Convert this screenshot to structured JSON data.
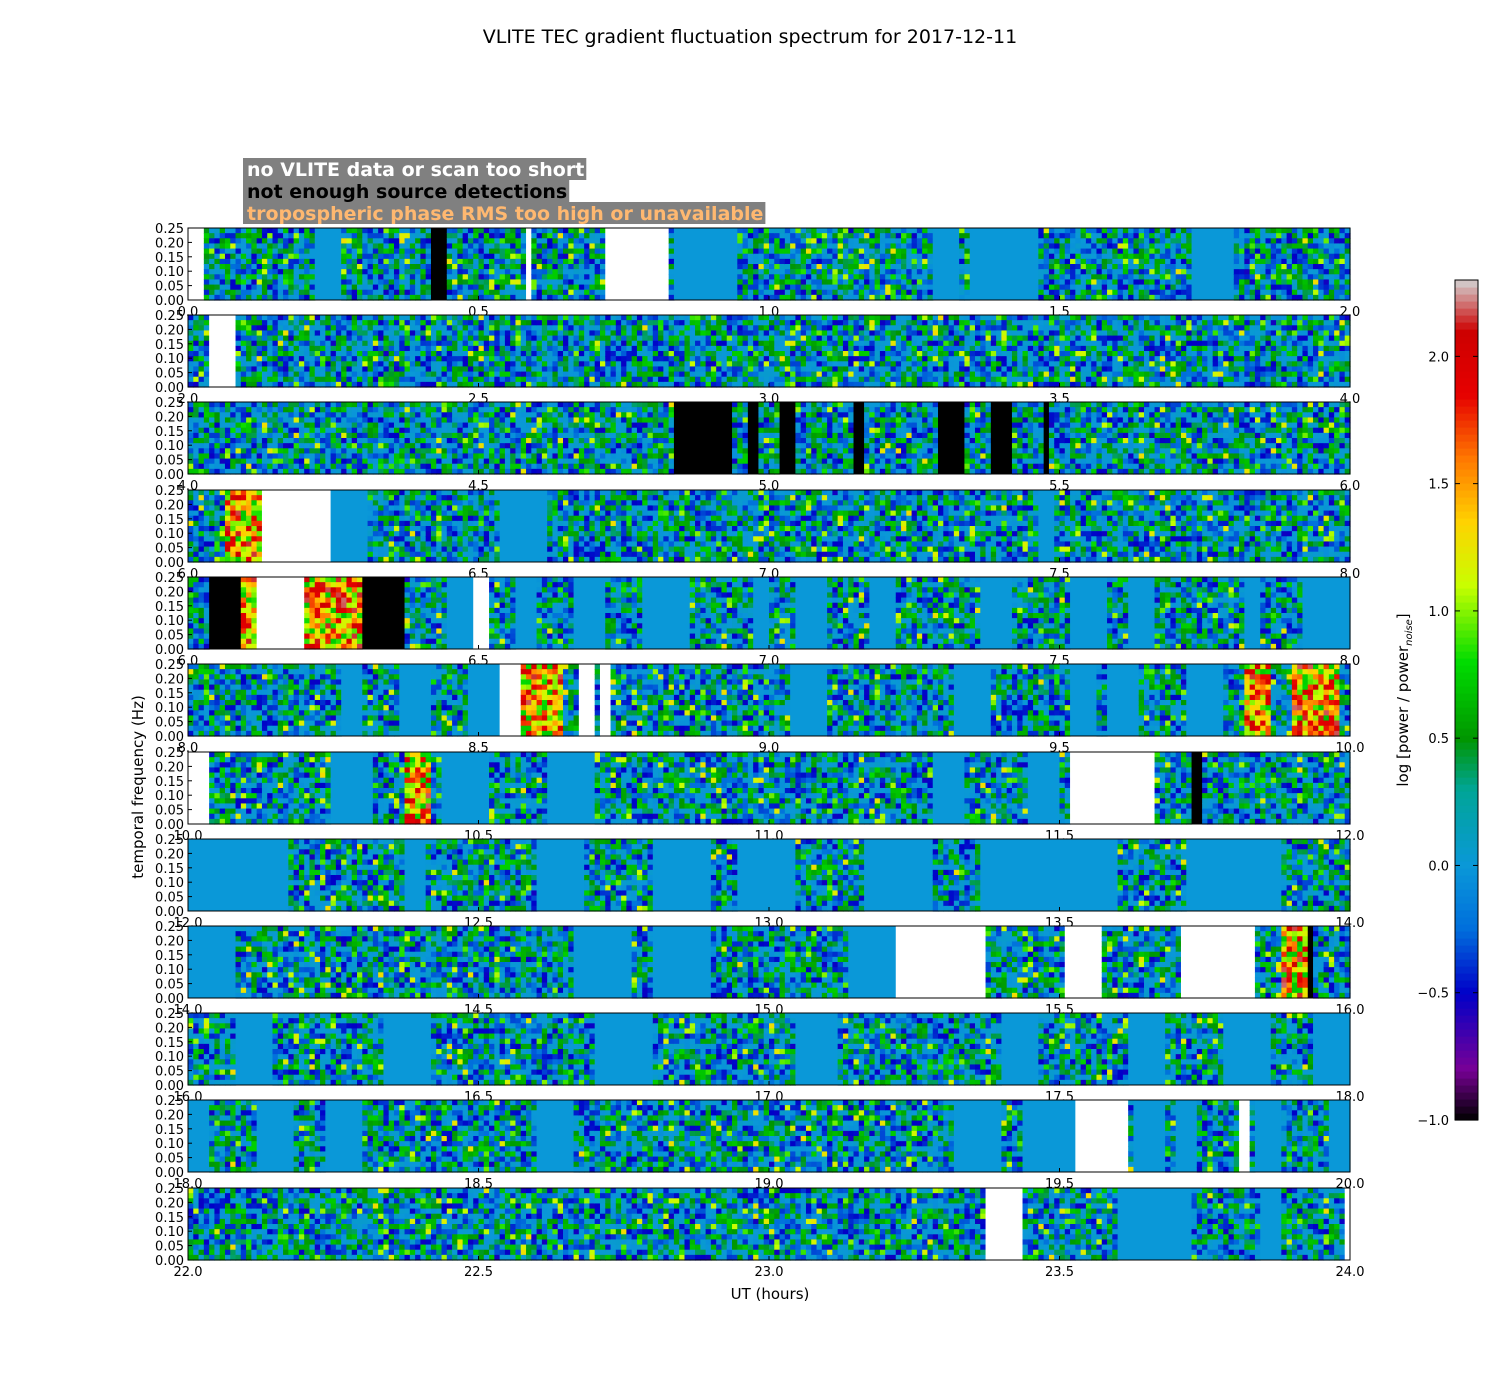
{
  "chart_data": {
    "type": "heatmap",
    "title": "VLITE TEC gradient fluctuation spectrum for 2017-12-11",
    "xlabel": "UT (hours)",
    "ylabel": "temporal frequency (Hz)",
    "ylim": [
      0,
      0.25
    ],
    "y_ticks": [
      "0.00",
      "0.05",
      "0.10",
      "0.15",
      "0.20",
      "0.25"
    ],
    "colorbar": {
      "label_main": "log [power / power",
      "label_sub": "noise",
      "label_end": "]",
      "range": [
        -1.0,
        2.3
      ],
      "ticks": [
        "−1.0",
        "−0.5",
        "0.0",
        "0.5",
        "1.0",
        "1.5",
        "2.0"
      ],
      "tick_values": [
        -1.0,
        -0.5,
        0.0,
        0.5,
        1.0,
        1.5,
        2.0
      ]
    },
    "legend": [
      {
        "text": "no VLITE data or scan too short",
        "text_color": "#ffffff",
        "meaning": "white"
      },
      {
        "text": "not enough source detections",
        "text_color": "#000000",
        "meaning": "black"
      },
      {
        "text": "tropospheric phase RMS too high or unavailable",
        "text_color": "#ffb870",
        "meaning": "red-yellow"
      }
    ],
    "legend_background": "#808080",
    "colors": {
      "no_data": "#ffffff",
      "few_detections": "#000000",
      "baseline": "#0a98d8"
    },
    "rows": [
      {
        "x_ticks": [
          "0.0",
          "0.5",
          "1.0",
          "1.5",
          "2.0"
        ],
        "range": [
          0,
          2
        ],
        "white": [
          [
            0,
            0.03
          ],
          [
            0.58,
            0.59
          ],
          [
            0.72,
            0.83
          ]
        ],
        "black": [
          [
            0.42,
            0.45
          ]
        ],
        "hot": [],
        "flat": [
          [
            0.22,
            0.26
          ],
          [
            0.75,
            0.82
          ],
          [
            0.84,
            0.95
          ],
          [
            1.28,
            1.33
          ],
          [
            1.35,
            1.46
          ],
          [
            1.73,
            1.8
          ]
        ]
      },
      {
        "x_ticks": [
          "2.0",
          "2.5",
          "3.0",
          "3.5",
          "4.0"
        ],
        "range": [
          2,
          4
        ],
        "white": [
          [
            2.04,
            2.08
          ]
        ],
        "black": [],
        "hot": [],
        "flat": []
      },
      {
        "x_ticks": [
          "4.0",
          "4.5",
          "5.0",
          "5.5",
          "6.0"
        ],
        "range": [
          4,
          6
        ],
        "white": [],
        "black": [
          [
            4.84,
            4.94
          ],
          [
            4.96,
            4.98
          ],
          [
            5.02,
            5.05
          ],
          [
            5.15,
            5.16
          ],
          [
            5.29,
            5.34
          ],
          [
            5.38,
            5.42
          ],
          [
            5.47,
            5.48
          ]
        ],
        "hot": [],
        "flat": []
      },
      {
        "x_ticks": [
          "6.0",
          "6.5",
          "7.0",
          "7.5",
          "8.0"
        ],
        "range": [
          6,
          8
        ],
        "white": [
          [
            6.13,
            6.25
          ]
        ],
        "black": [],
        "hot": [
          [
            6.06,
            6.13
          ]
        ],
        "flat": [
          [
            6.25,
            6.31
          ],
          [
            6.54,
            6.62
          ],
          [
            7.46,
            7.49
          ]
        ]
      },
      {
        "x_ticks": [
          "6.0",
          "6.5",
          "7.0",
          "7.5",
          "8.0"
        ],
        "range": [
          6,
          8
        ],
        "white": [
          [
            6.12,
            6.2
          ],
          [
            6.49,
            6.52
          ]
        ],
        "black": [
          [
            6.04,
            6.09
          ],
          [
            6.3,
            6.37
          ]
        ],
        "hot": [
          [
            6.09,
            6.12
          ],
          [
            6.2,
            6.3
          ]
        ],
        "flat": [
          [
            6.45,
            6.49
          ],
          [
            6.56,
            6.6
          ],
          [
            6.66,
            6.72
          ],
          [
            6.78,
            6.86
          ],
          [
            6.97,
            7.0
          ],
          [
            7.05,
            7.1
          ],
          [
            7.17,
            7.22
          ],
          [
            7.36,
            7.42
          ],
          [
            7.52,
            7.58
          ],
          [
            7.62,
            7.66
          ],
          [
            7.82,
            7.85
          ],
          [
            7.92,
            8.0
          ]
        ]
      },
      {
        "x_ticks": [
          "8.0",
          "8.5",
          "9.0",
          "9.5",
          "10.0"
        ],
        "range": [
          8,
          10
        ],
        "white": [
          [
            8.54,
            8.57
          ],
          [
            8.67,
            8.7
          ],
          [
            8.71,
            8.73
          ]
        ],
        "black": [],
        "hot": [
          [
            8.57,
            8.65
          ],
          [
            9.82,
            9.86
          ],
          [
            9.9,
            9.98
          ]
        ],
        "flat": [
          [
            8.26,
            8.3
          ],
          [
            8.36,
            8.42
          ],
          [
            8.48,
            8.54
          ],
          [
            9.04,
            9.1
          ],
          [
            9.32,
            9.38
          ],
          [
            9.52,
            9.56
          ],
          [
            9.58,
            9.64
          ],
          [
            9.72,
            9.78
          ]
        ]
      },
      {
        "x_ticks": [
          "10.0",
          "10.5",
          "11.0",
          "11.5",
          "12.0"
        ],
        "range": [
          10,
          12
        ],
        "white": [
          [
            10.0,
            10.04
          ],
          [
            11.52,
            11.66
          ]
        ],
        "black": [
          [
            11.73,
            11.75
          ]
        ],
        "hot": [
          [
            10.37,
            10.42
          ]
        ],
        "flat": [
          [
            10.25,
            10.32
          ],
          [
            10.44,
            10.52
          ],
          [
            10.62,
            10.7
          ],
          [
            11.28,
            11.34
          ],
          [
            11.45,
            11.5
          ]
        ]
      },
      {
        "x_ticks": [
          "12.0",
          "12.5",
          "13.0",
          "13.5",
          "14.0"
        ],
        "range": [
          12,
          14
        ],
        "white": [],
        "black": [],
        "hot": [],
        "flat": [
          [
            12.0,
            12.17
          ],
          [
            12.37,
            12.41
          ],
          [
            12.6,
            12.68
          ],
          [
            12.8,
            12.9
          ],
          [
            12.95,
            13.05
          ],
          [
            13.16,
            13.28
          ],
          [
            13.36,
            13.6
          ],
          [
            13.72,
            13.88
          ]
        ]
      },
      {
        "x_ticks": [
          "14.0",
          "14.5",
          "15.0",
          "15.5",
          "16.0"
        ],
        "range": [
          14,
          16
        ],
        "white": [
          [
            15.22,
            15.37
          ],
          [
            15.51,
            15.57
          ],
          [
            15.71,
            15.84
          ]
        ],
        "black": [
          [
            15.93,
            15.94
          ]
        ],
        "hot": [
          [
            15.88,
            15.93
          ]
        ],
        "flat": [
          [
            14.0,
            14.08
          ],
          [
            14.66,
            14.76
          ],
          [
            14.8,
            14.9
          ],
          [
            15.14,
            15.22
          ]
        ]
      },
      {
        "x_ticks": [
          "16.0",
          "16.5",
          "17.0",
          "17.5",
          "18.0"
        ],
        "range": [
          16,
          18
        ],
        "white": [],
        "black": [],
        "hot": [],
        "flat": [
          [
            16.08,
            16.15
          ],
          [
            16.34,
            16.42
          ],
          [
            16.7,
            16.8
          ],
          [
            17.05,
            17.12
          ],
          [
            17.4,
            17.46
          ],
          [
            17.62,
            17.68
          ],
          [
            17.78,
            17.86
          ],
          [
            17.94,
            18.0
          ]
        ]
      },
      {
        "x_ticks": [
          "18.0",
          "18.5",
          "19.0",
          "19.5",
          "20.0"
        ],
        "range": [
          18,
          20
        ],
        "white": [
          [
            19.53,
            19.62
          ],
          [
            19.81,
            19.83
          ]
        ],
        "black": [],
        "hot": [],
        "flat": [
          [
            18.0,
            18.04
          ],
          [
            18.12,
            18.18
          ],
          [
            18.24,
            18.3
          ],
          [
            18.6,
            18.66
          ],
          [
            19.32,
            19.4
          ],
          [
            19.44,
            19.53
          ],
          [
            19.63,
            19.68
          ],
          [
            19.7,
            19.74
          ],
          [
            19.84,
            19.88
          ],
          [
            19.96,
            20.0
          ]
        ]
      },
      {
        "x_ticks": [
          "22.0",
          "22.5",
          "23.0",
          "23.5",
          "24.0"
        ],
        "range": [
          22,
          24
        ],
        "white": [
          [
            23.37,
            23.44
          ],
          [
            23.99,
            24.0
          ]
        ],
        "black": [],
        "hot": [],
        "flat": [
          [
            23.6,
            23.73
          ],
          [
            23.85,
            23.88
          ]
        ]
      }
    ]
  }
}
